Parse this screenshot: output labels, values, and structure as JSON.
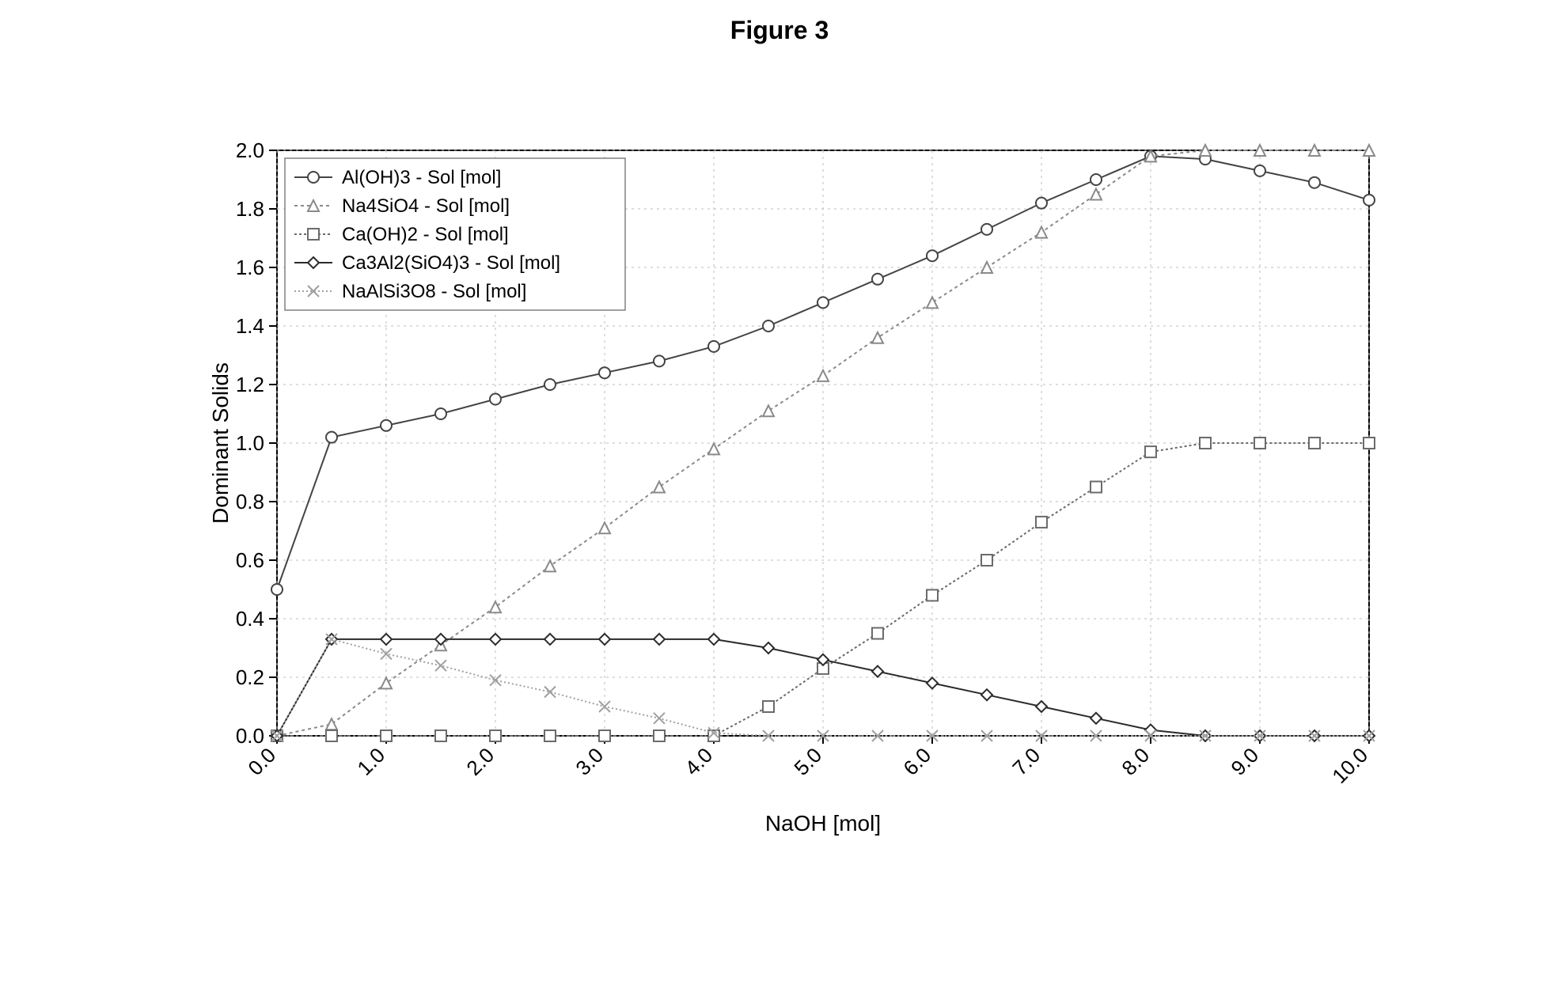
{
  "title": "Figure 3",
  "chart": {
    "type": "line",
    "background_color": "#ffffff",
    "plot_border_color": "#000000",
    "grid_color": "#bdbdbd",
    "tick_color": "#000000",
    "axis_color": "#000000",
    "title_fontsize": 32,
    "tick_fontsize": 26,
    "label_fontsize": 28,
    "legend_fontsize": 24,
    "line_width": 2,
    "marker_size": 7,
    "x": {
      "label": "NaOH [mol]",
      "min": 0.0,
      "max": 10.0,
      "ticks": [
        0.0,
        1.0,
        2.0,
        3.0,
        4.0,
        5.0,
        6.0,
        7.0,
        8.0,
        9.0,
        10.0
      ],
      "tick_labels": [
        "0.0",
        "1.0",
        "2.0",
        "3.0",
        "4.0",
        "5.0",
        "6.0",
        "7.0",
        "8.0",
        "9.0",
        "10.0"
      ],
      "tick_rotation_deg": -45,
      "grid": true
    },
    "y": {
      "label": "Dominant Solids",
      "min": 0.0,
      "max": 2.0,
      "ticks": [
        0.0,
        0.2,
        0.4,
        0.6,
        0.8,
        1.0,
        1.2,
        1.4,
        1.6,
        1.8,
        2.0
      ],
      "tick_labels": [
        "0.0",
        "0.2",
        "0.4",
        "0.6",
        "0.8",
        "1.0",
        "1.2",
        "1.4",
        "1.6",
        "1.8",
        "2.0"
      ],
      "grid": true
    },
    "legend": {
      "position": "top-left",
      "box_color": "#808080",
      "items": [
        {
          "key": "al_oh_3",
          "label": "Al(OH)3 - Sol [mol]"
        },
        {
          "key": "na4_sio4",
          "label": "Na4SiO4 - Sol [mol]"
        },
        {
          "key": "ca_oh_2",
          "label": "Ca(OH)2 - Sol [mol]"
        },
        {
          "key": "ca3_al2_sio4_3",
          "label": "Ca3Al2(SiO4)3 - Sol [mol]"
        },
        {
          "key": "na_al_si3_o8",
          "label": "NaAlSi3O8 - Sol [mol]"
        }
      ]
    },
    "series": {
      "al_oh_3": {
        "label": "Al(OH)3 - Sol [mol]",
        "color": "#444444",
        "line_dash": "none",
        "marker": "circle",
        "xs": [
          0.0,
          0.5,
          1.0,
          1.5,
          2.0,
          2.5,
          3.0,
          3.5,
          4.0,
          4.5,
          5.0,
          5.5,
          6.0,
          6.5,
          7.0,
          7.5,
          8.0,
          8.5,
          9.0,
          9.5,
          10.0
        ],
        "ys": [
          0.5,
          1.02,
          1.06,
          1.1,
          1.15,
          1.2,
          1.24,
          1.28,
          1.33,
          1.4,
          1.48,
          1.56,
          1.64,
          1.73,
          1.82,
          1.9,
          1.98,
          1.97,
          1.93,
          1.89,
          1.83
        ]
      },
      "na4_sio4": {
        "label": "Na4SiO4 - Sol [mol]",
        "color": "#8a8a8a",
        "line_dash": "4 4",
        "marker": "triangle",
        "xs": [
          0.0,
          0.5,
          1.0,
          1.5,
          2.0,
          2.5,
          3.0,
          3.5,
          4.0,
          4.5,
          5.0,
          5.5,
          6.0,
          6.5,
          7.0,
          7.5,
          8.0,
          8.5,
          9.0,
          9.5,
          10.0
        ],
        "ys": [
          0.0,
          0.04,
          0.18,
          0.31,
          0.44,
          0.58,
          0.71,
          0.85,
          0.98,
          1.11,
          1.23,
          1.36,
          1.48,
          1.6,
          1.72,
          1.85,
          1.98,
          2.0,
          2.0,
          2.0,
          2.0
        ]
      },
      "ca_oh_2": {
        "label": "Ca(OH)2 - Sol [mol]",
        "color": "#6b6b6b",
        "line_dash": "3 3",
        "marker": "square",
        "xs": [
          0.0,
          0.5,
          1.0,
          1.5,
          2.0,
          2.5,
          3.0,
          3.5,
          4.0,
          4.5,
          5.0,
          5.5,
          6.0,
          6.5,
          7.0,
          7.5,
          8.0,
          8.5,
          9.0,
          9.5,
          10.0
        ],
        "ys": [
          0.0,
          0.0,
          0.0,
          0.0,
          0.0,
          0.0,
          0.0,
          0.0,
          0.0,
          0.1,
          0.23,
          0.35,
          0.48,
          0.6,
          0.73,
          0.85,
          0.97,
          1.0,
          1.0,
          1.0,
          1.0
        ]
      },
      "ca3_al2_sio4_3": {
        "label": "Ca3Al2(SiO4)3 - Sol [mol]",
        "color": "#2b2b2b",
        "line_dash": "none",
        "marker": "diamond",
        "xs": [
          0.0,
          0.5,
          1.0,
          1.5,
          2.0,
          2.5,
          3.0,
          3.5,
          4.0,
          4.5,
          5.0,
          5.5,
          6.0,
          6.5,
          7.0,
          7.5,
          8.0,
          8.5,
          9.0,
          9.5,
          10.0
        ],
        "ys": [
          0.0,
          0.33,
          0.33,
          0.33,
          0.33,
          0.33,
          0.33,
          0.33,
          0.33,
          0.3,
          0.26,
          0.22,
          0.18,
          0.14,
          0.1,
          0.06,
          0.02,
          0.0,
          0.0,
          0.0,
          0.0
        ]
      },
      "na_al_si3_o8": {
        "label": "NaAlSi3O8 - Sol [mol]",
        "color": "#a0a0a0",
        "line_dash": "2 3",
        "marker": "x",
        "xs": [
          0.0,
          0.5,
          1.0,
          1.5,
          2.0,
          2.5,
          3.0,
          3.5,
          4.0,
          4.5,
          5.0,
          5.5,
          6.0,
          6.5,
          7.0,
          7.5,
          8.0,
          8.5,
          9.0,
          9.5,
          10.0
        ],
        "ys": [
          0.0,
          0.33,
          0.28,
          0.24,
          0.19,
          0.15,
          0.1,
          0.06,
          0.01,
          0.0,
          0.0,
          0.0,
          0.0,
          0.0,
          0.0,
          0.0,
          0.0,
          0.0,
          0.0,
          0.0,
          0.0
        ]
      }
    }
  }
}
